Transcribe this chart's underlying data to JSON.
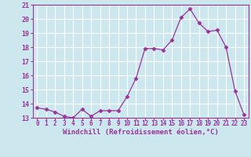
{
  "x": [
    0,
    1,
    2,
    3,
    4,
    5,
    6,
    7,
    8,
    9,
    10,
    11,
    12,
    13,
    14,
    15,
    16,
    17,
    18,
    19,
    20,
    21,
    22,
    23
  ],
  "y": [
    13.7,
    13.6,
    13.4,
    13.1,
    13.0,
    13.6,
    13.1,
    13.5,
    13.5,
    13.5,
    14.5,
    15.8,
    17.9,
    17.9,
    17.8,
    18.5,
    20.1,
    20.7,
    19.7,
    19.1,
    19.2,
    18.0,
    14.9,
    13.2
  ],
  "line_color": "#993399",
  "marker": "D",
  "marker_size": 2.5,
  "bg_color": "#cce8ee",
  "grid_color": "#ffffff",
  "xlabel": "Windchill (Refroidissement éolien,°C)",
  "ylim": [
    13,
    21
  ],
  "xlim": [
    -0.5,
    23.5
  ],
  "yticks": [
    13,
    14,
    15,
    16,
    17,
    18,
    19,
    20,
    21
  ],
  "xticks": [
    0,
    1,
    2,
    3,
    4,
    5,
    6,
    7,
    8,
    9,
    10,
    11,
    12,
    13,
    14,
    15,
    16,
    17,
    18,
    19,
    20,
    21,
    22,
    23
  ],
  "tick_color": "#993399",
  "label_color": "#993399",
  "tick_fontsize": 5.5,
  "ytick_fontsize": 6.0,
  "xlabel_fontsize": 6.5
}
